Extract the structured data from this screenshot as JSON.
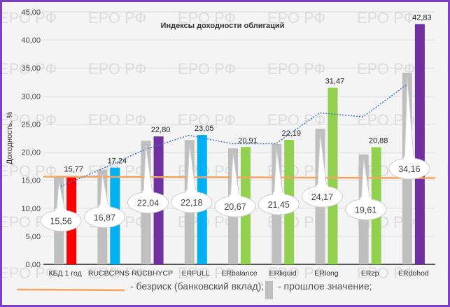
{
  "watermark": "ЕРО РФ",
  "chart_data": {
    "type": "bar",
    "title": "Индексы доходности облигаций",
    "ylabel": "Доходность, %",
    "xlabel": "",
    "ylim": [
      0,
      45
    ],
    "yticks": [
      "0,00",
      "5,00",
      "10,00",
      "15,00",
      "20,00",
      "25,00",
      "30,00",
      "35,00",
      "40,00",
      "45,00"
    ],
    "grid": true,
    "categories": [
      "КБД 1 год",
      "RUCBCPNS",
      "RUCBHYCP",
      "ERFULL",
      "ERbalance",
      "ERliquid",
      "ERlong",
      "ERzp",
      "ERdohod"
    ],
    "current": [
      15.77,
      17.24,
      22.8,
      23.05,
      20.91,
      22.19,
      31.47,
      20.88,
      42.83
    ],
    "current_labels": [
      "15,77",
      "17,24",
      "22,80",
      "23,05",
      "20,91",
      "22,19",
      "31,47",
      "20,88",
      "42,83"
    ],
    "previous": [
      15.56,
      16.87,
      22.04,
      22.18,
      20.67,
      21.45,
      24.17,
      19.61,
      34.16
    ],
    "previous_labels": [
      "15,56",
      "16,87",
      "22,04",
      "22,18",
      "20,67",
      "21,45",
      "24,17",
      "19,61",
      "34,16"
    ],
    "bar_colors": [
      "#ff0000",
      "#00b0f0",
      "#7030a0",
      "#00b0f0",
      "#92d050",
      "#92d050",
      "#92d050",
      "#92d050",
      "#7030a0"
    ],
    "previous_color": "#bfbfbf",
    "riskfree_level": 15.5,
    "riskfree_color": "#f4a460",
    "trend": [
      13.7,
      17.0,
      20.5,
      23.0,
      21.5,
      21.5,
      27.0,
      26.3,
      32.0
    ],
    "trend_color": "#4472c4",
    "legend": {
      "riskfree": "- безриск (банковский вклад);",
      "previous": "- прошлое значение;"
    }
  }
}
